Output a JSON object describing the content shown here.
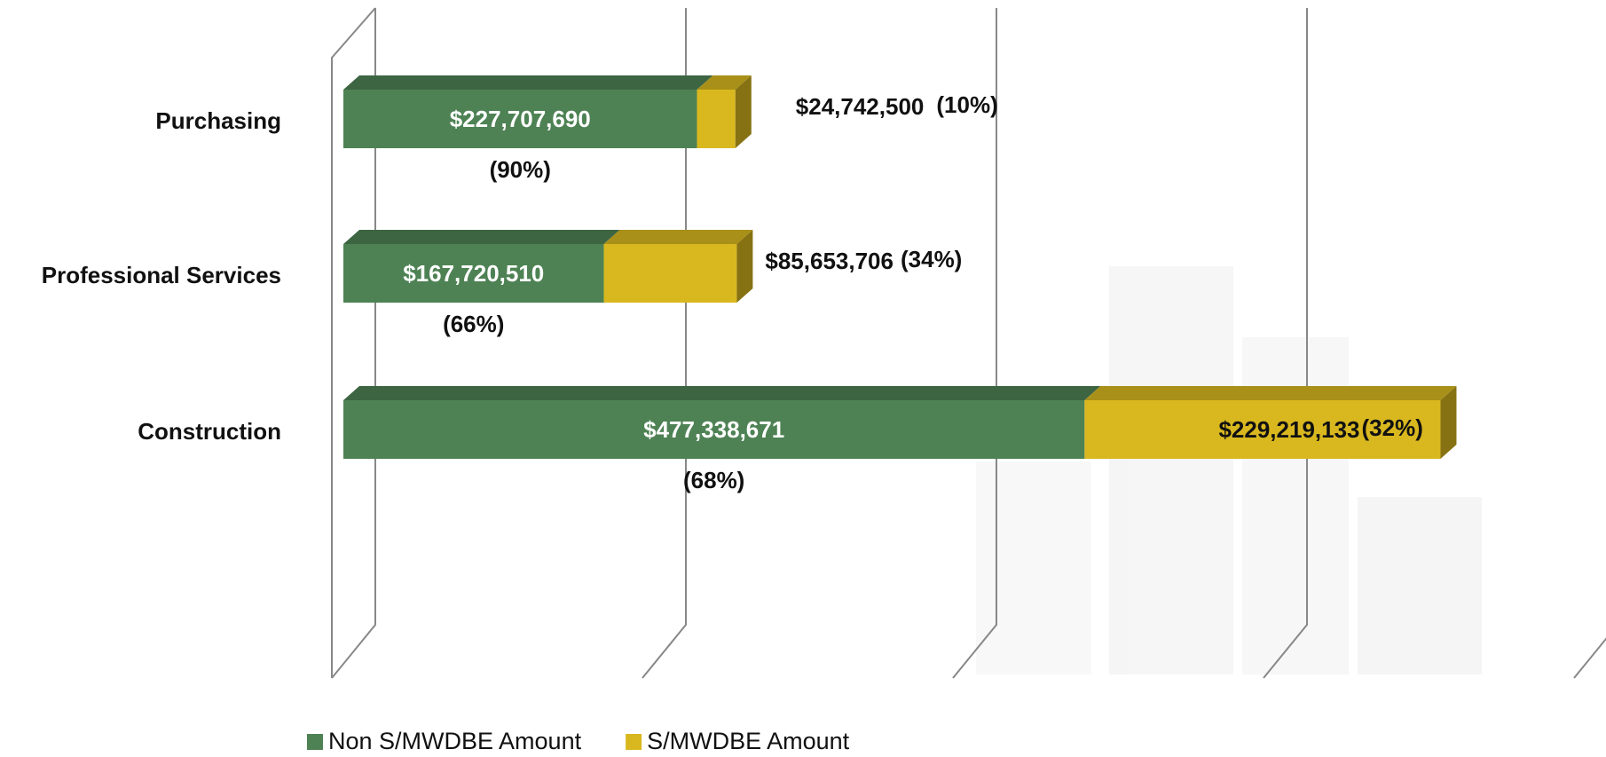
{
  "chart_data": {
    "type": "bar3d_stacked_horizontal",
    "categories": [
      "Purchasing",
      "Professional Services",
      "Construction"
    ],
    "series": [
      {
        "name": "Non S/MWDBE Amount",
        "color": "#4e8254",
        "values": [
          227707690,
          167720510,
          477338671
        ],
        "value_labels": [
          "$227,707,690",
          "$167,720,510",
          "$477,338,671"
        ],
        "percent_labels": [
          "(90%)",
          "(66%)",
          "(68%)"
        ]
      },
      {
        "name": "S/MWDBE Amount",
        "color": "#d9b81f",
        "values": [
          24742500,
          85653706,
          229219133
        ],
        "value_labels": [
          "$24,742,500",
          "$85,653,706",
          "$229,219,133"
        ],
        "percent_labels": [
          "(10%)",
          "(34%)",
          "(32%)"
        ]
      }
    ],
    "xlim": [
      0,
      800000000
    ],
    "xticks": [
      0,
      200000000,
      400000000,
      600000000,
      800000000
    ],
    "grid": true,
    "legend": "bottom"
  }
}
